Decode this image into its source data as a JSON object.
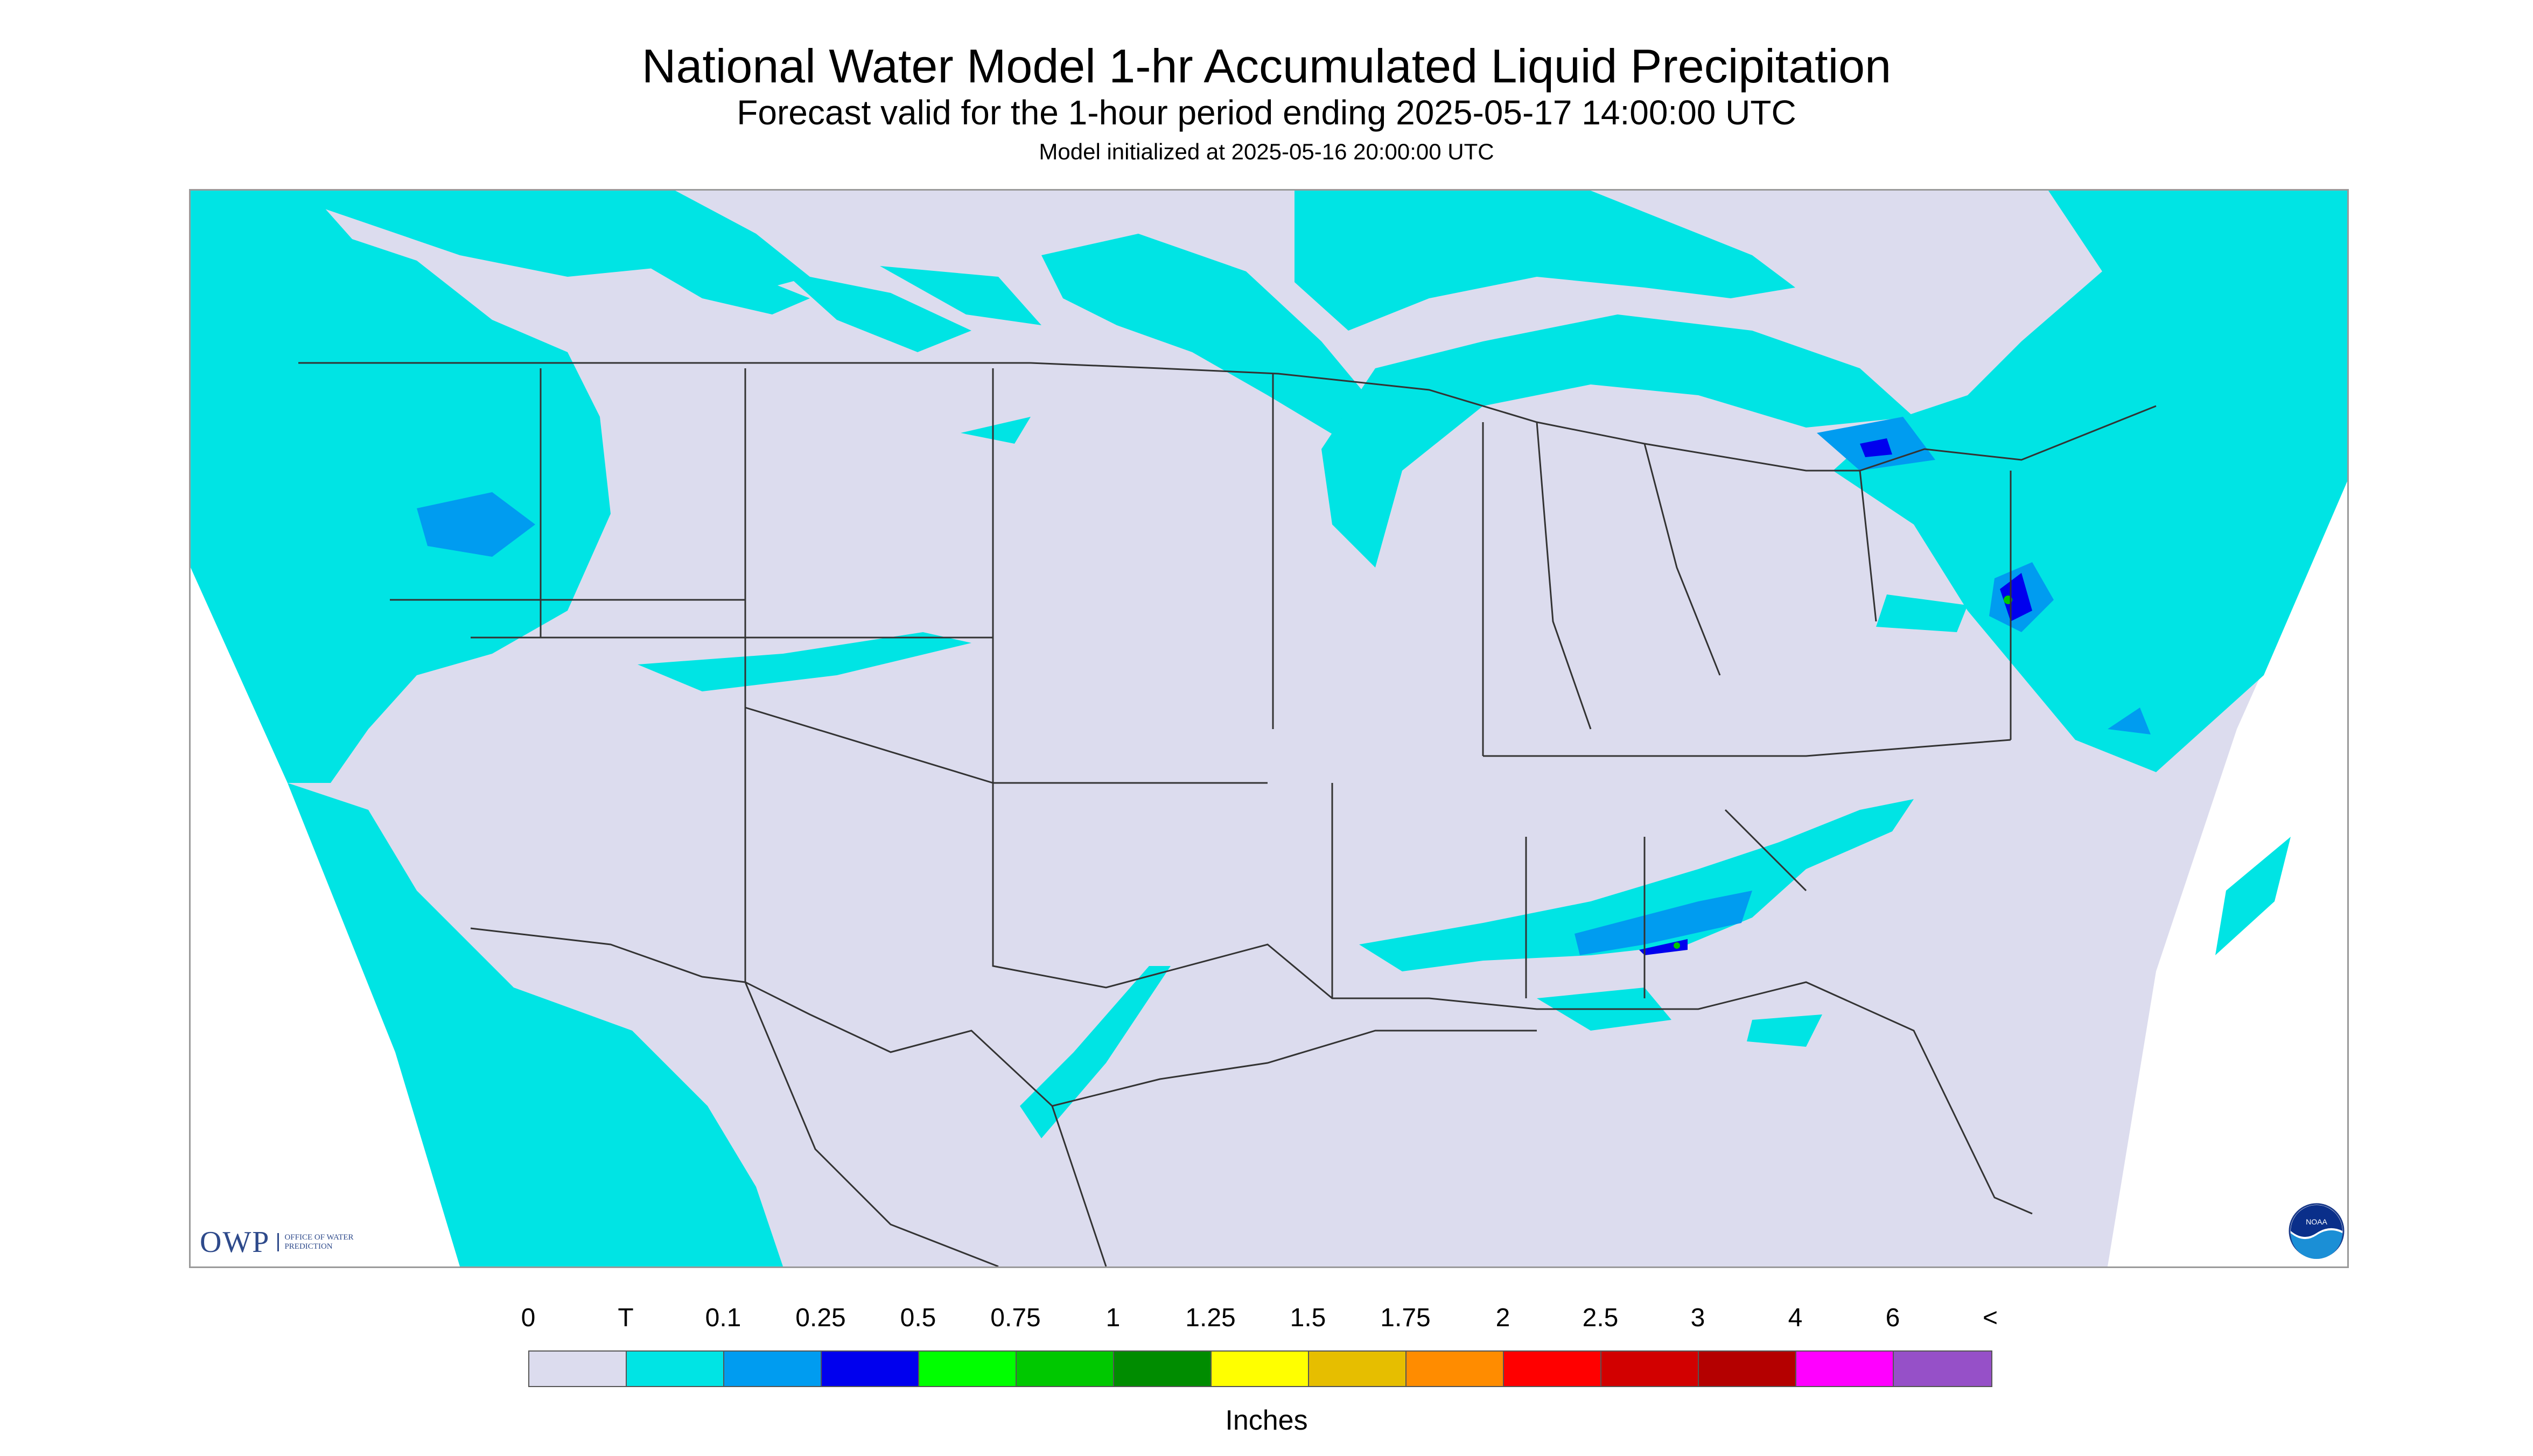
{
  "title": "National Water Model 1-hr Accumulated Liquid Precipitation",
  "subtitle": "Forecast valid for the 1-hour period ending 2025-05-17 14:00:00 UTC",
  "init_line": "Model initialized at 2025-05-16 20:00:00 UTC",
  "logos": {
    "owp_word": "OWP",
    "owp_sub": "Office of Water Prediction",
    "noaa_text": "NOAA"
  },
  "legend": {
    "labels": [
      "0",
      "T",
      "0.1",
      "0.25",
      "0.5",
      "0.75",
      "1",
      "1.25",
      "1.5",
      "1.75",
      "2",
      "2.5",
      "3",
      "4",
      "6",
      "<"
    ],
    "colors": [
      "#dcdcee",
      "#00e4e4",
      "#009cf0",
      "#0000ee",
      "#00ff00",
      "#00c800",
      "#008c00",
      "#ffff00",
      "#e6be00",
      "#ff8c00",
      "#ff0000",
      "#d20000",
      "#b40000",
      "#ff00ff",
      "#9650c8"
    ],
    "units": "Inches"
  },
  "map_colors": {
    "land": "#dcdcee",
    "trace": "#00e4e4",
    "light": "#009cf0",
    "moderate": "#0000ee",
    "heavy": "#00c800",
    "border": "#333333"
  }
}
